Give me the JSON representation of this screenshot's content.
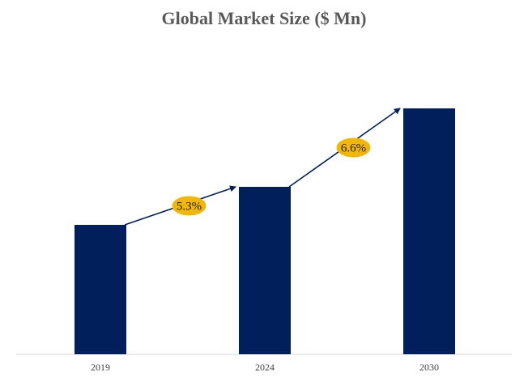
{
  "chart_data": {
    "type": "bar",
    "title": "Global Market Size ($ Mn)",
    "categories": [
      "2019",
      "2024",
      "2030"
    ],
    "values": [
      160,
      207,
      304
    ],
    "ylim": [
      0,
      340
    ],
    "xlabel": "",
    "ylabel": "",
    "grid": false,
    "legend": "none",
    "annotations": [
      {
        "text": "5.3%",
        "from": "2019",
        "to": "2024"
      },
      {
        "text": "6.6%",
        "from": "2024",
        "to": "2030"
      }
    ],
    "colors": {
      "bar": "#001f5b",
      "arrow": "#001f5b",
      "badge": "#f2b705",
      "axis": "#d9d9d9"
    }
  }
}
